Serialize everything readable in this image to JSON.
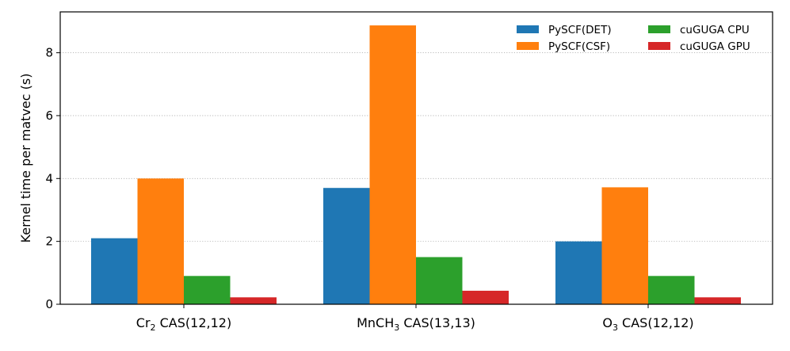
{
  "chart_data": {
    "type": "bar",
    "categories": [
      {
        "base": "Cr",
        "sub": "2",
        "suffix": " CAS(12,12)"
      },
      {
        "base": "MnCH",
        "sub": "3",
        "suffix": " CAS(13,13)"
      },
      {
        "base": "O",
        "sub": "3",
        "suffix": " CAS(12,12)"
      }
    ],
    "series": [
      {
        "name": "PySCF(DET)",
        "color": "#1f77b4",
        "values": [
          2.1,
          3.7,
          2.0
        ]
      },
      {
        "name": "PySCF(CSF)",
        "color": "#ff7f0e",
        "values": [
          4.0,
          8.87,
          3.72
        ]
      },
      {
        "name": "cuGUGA CPU",
        "color": "#2ca02c",
        "values": [
          0.9,
          1.5,
          0.9
        ]
      },
      {
        "name": "cuGUGA GPU",
        "color": "#d62728",
        "values": [
          0.22,
          0.43,
          0.22
        ]
      }
    ],
    "ylabel": "Kernel time per matvec (s)",
    "ylim": [
      0,
      9.3
    ],
    "yticks": [
      0,
      2,
      4,
      6,
      8
    ],
    "grid": "y-dotted",
    "legend": {
      "placement": "top-right",
      "columns": 2
    }
  }
}
